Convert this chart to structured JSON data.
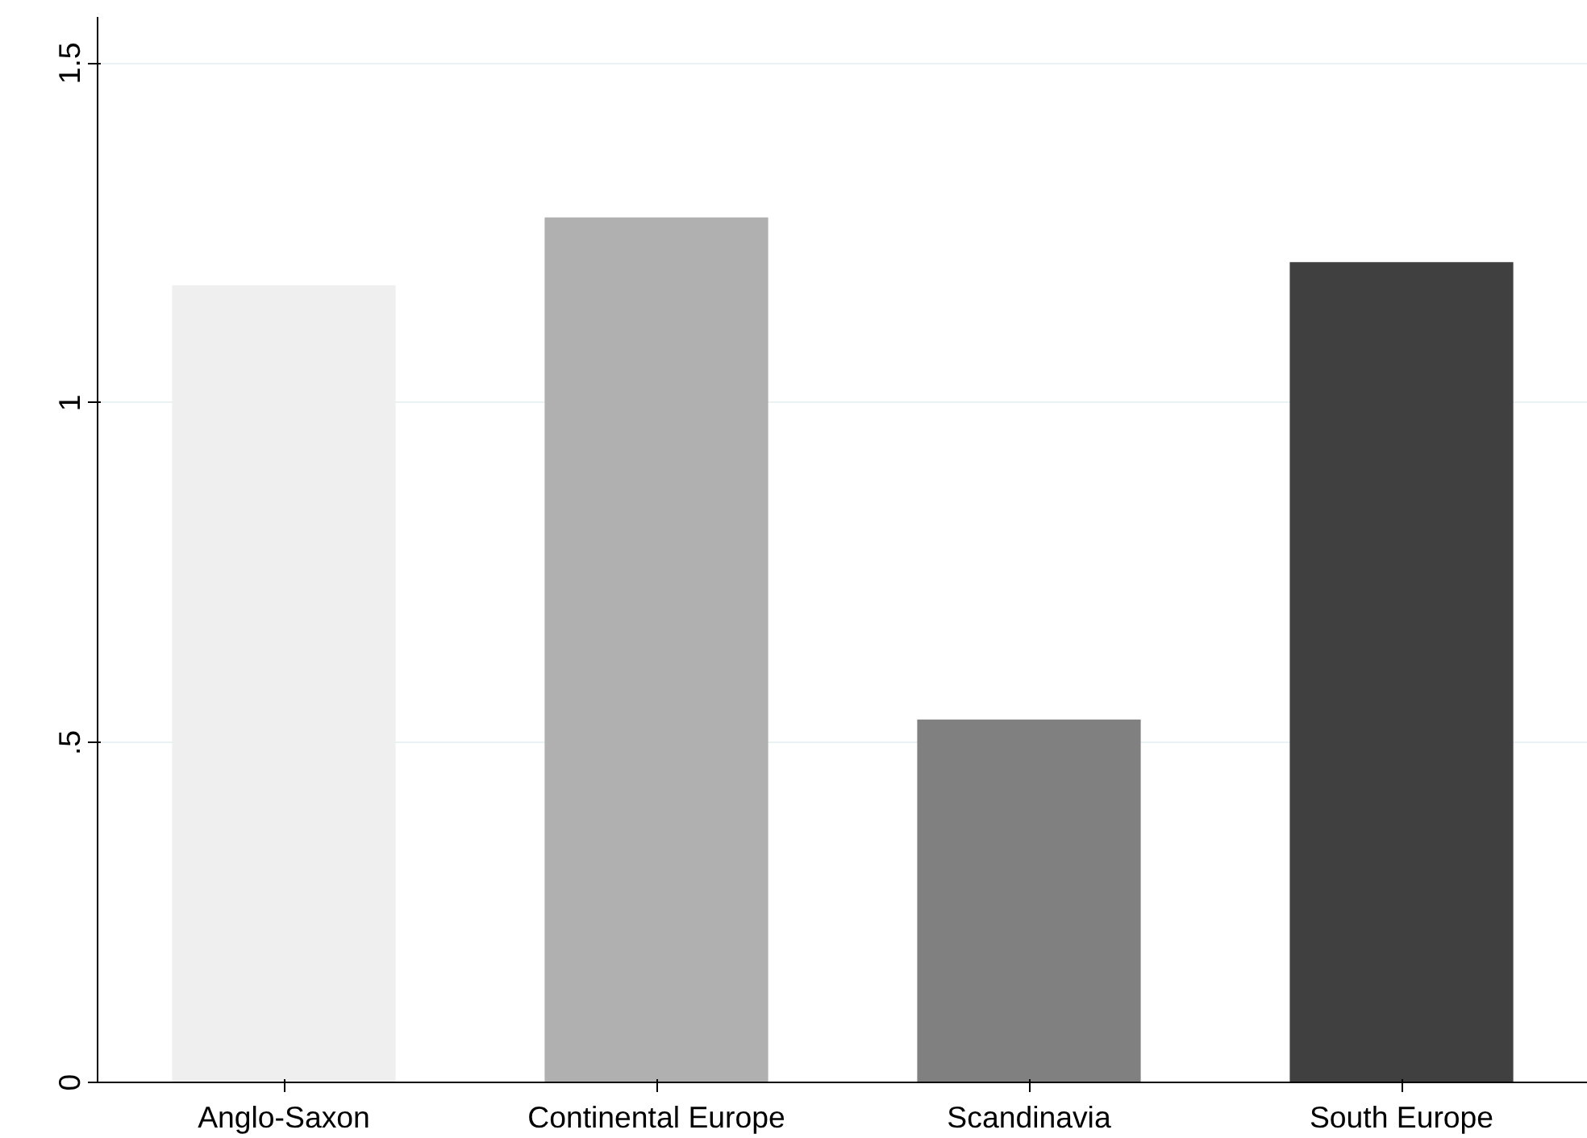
{
  "chart_data": {
    "type": "bar",
    "categories": [
      "Anglo-Saxon",
      "Continental Europe",
      "Scandinavia",
      "South Europe"
    ],
    "values": [
      1.173,
      1.273,
      0.534,
      1.207
    ],
    "colors": [
      "#efefef",
      "#b0b0b0",
      "#808080",
      "#404040"
    ],
    "ylim": [
      0,
      1.568
    ],
    "yticks": [
      0,
      {
        "value": 0.5,
        "label": ".5"
      },
      1,
      1.5
    ],
    "grid": "y",
    "legend": false
  }
}
